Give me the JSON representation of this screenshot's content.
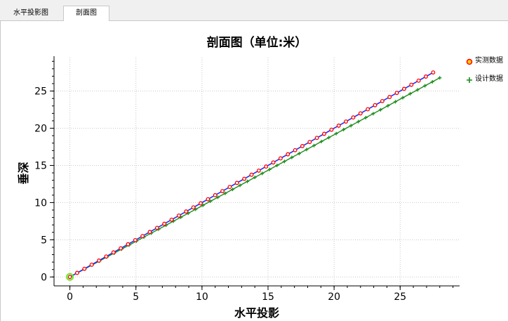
{
  "tabs": [
    {
      "label": "水平投影图",
      "active": false
    },
    {
      "label": "剖面图",
      "active": true
    }
  ],
  "chart_data": {
    "type": "line",
    "title": "剖面图（单位:米）",
    "xlabel": "水平投影",
    "ylabel": "垂深",
    "xlim": [
      -1.2,
      29.5
    ],
    "ylim": [
      -1.2,
      29.5
    ],
    "xticks": [
      0,
      5,
      10,
      15,
      20,
      25
    ],
    "yticks": [
      0,
      5,
      10,
      15,
      20,
      25
    ],
    "grid": true,
    "legend": "right",
    "start_marker": {
      "x": 0,
      "y": 0,
      "color": "#66ee22"
    },
    "series": [
      {
        "name": "实测数据",
        "marker": "circle",
        "color": "#ff0000",
        "line_color": "#2030ff",
        "points": [
          [
            0.0,
            0.0
          ],
          [
            0.55,
            0.55
          ],
          [
            1.1,
            1.1
          ],
          [
            1.65,
            1.65
          ],
          [
            2.2,
            2.2
          ],
          [
            2.75,
            2.75
          ],
          [
            3.3,
            3.3
          ],
          [
            3.85,
            3.85
          ],
          [
            4.4,
            4.4
          ],
          [
            4.95,
            4.95
          ],
          [
            5.5,
            5.5
          ],
          [
            6.05,
            6.05
          ],
          [
            6.6,
            6.6
          ],
          [
            7.15,
            7.15
          ],
          [
            7.7,
            7.7
          ],
          [
            8.25,
            8.25
          ],
          [
            8.8,
            8.8
          ],
          [
            9.35,
            9.35
          ],
          [
            9.9,
            9.9
          ],
          [
            10.45,
            10.45
          ],
          [
            11.0,
            11.0
          ],
          [
            11.55,
            11.55
          ],
          [
            12.1,
            12.1
          ],
          [
            12.65,
            12.65
          ],
          [
            13.2,
            13.2
          ],
          [
            13.75,
            13.75
          ],
          [
            14.3,
            14.3
          ],
          [
            14.85,
            14.85
          ],
          [
            15.4,
            15.4
          ],
          [
            15.95,
            15.95
          ],
          [
            16.5,
            16.5
          ],
          [
            17.05,
            17.05
          ],
          [
            17.6,
            17.6
          ],
          [
            18.15,
            18.15
          ],
          [
            18.7,
            18.7
          ],
          [
            19.25,
            19.25
          ],
          [
            19.8,
            19.8
          ],
          [
            20.35,
            20.35
          ],
          [
            20.9,
            20.9
          ],
          [
            21.45,
            21.45
          ],
          [
            22.0,
            22.0
          ],
          [
            22.55,
            22.55
          ],
          [
            23.1,
            23.1
          ],
          [
            23.65,
            23.65
          ],
          [
            24.2,
            24.2
          ],
          [
            24.75,
            24.75
          ],
          [
            25.3,
            25.3
          ],
          [
            25.85,
            25.85
          ],
          [
            26.4,
            26.4
          ],
          [
            26.95,
            26.95
          ],
          [
            27.5,
            27.5
          ]
        ]
      },
      {
        "name": "设计数据",
        "marker": "plus",
        "color": "#1a8c1a",
        "line_color": "#1a8c1a",
        "points": [
          [
            0.0,
            0.0
          ],
          [
            0.56,
            0.54
          ],
          [
            1.12,
            1.07
          ],
          [
            1.68,
            1.61
          ],
          [
            2.24,
            2.14
          ],
          [
            2.8,
            2.68
          ],
          [
            3.36,
            3.21
          ],
          [
            3.92,
            3.75
          ],
          [
            4.48,
            4.28
          ],
          [
            5.04,
            4.82
          ],
          [
            5.6,
            5.36
          ],
          [
            6.16,
            5.89
          ],
          [
            6.72,
            6.43
          ],
          [
            7.28,
            6.96
          ],
          [
            7.84,
            7.5
          ],
          [
            8.4,
            8.03
          ],
          [
            8.96,
            8.57
          ],
          [
            9.52,
            9.1
          ],
          [
            10.08,
            9.64
          ],
          [
            10.64,
            10.18
          ],
          [
            11.2,
            10.71
          ],
          [
            11.76,
            11.25
          ],
          [
            12.32,
            11.78
          ],
          [
            12.88,
            12.32
          ],
          [
            13.44,
            12.85
          ],
          [
            14.0,
            13.39
          ],
          [
            14.56,
            13.92
          ],
          [
            15.12,
            14.46
          ],
          [
            15.68,
            15.0
          ],
          [
            16.24,
            15.53
          ],
          [
            16.8,
            16.07
          ],
          [
            17.36,
            16.6
          ],
          [
            17.92,
            17.14
          ],
          [
            18.48,
            17.67
          ],
          [
            19.04,
            18.21
          ],
          [
            19.6,
            18.74
          ],
          [
            20.16,
            19.28
          ],
          [
            20.72,
            19.82
          ],
          [
            21.28,
            20.35
          ],
          [
            21.84,
            20.89
          ],
          [
            22.4,
            21.42
          ],
          [
            22.96,
            21.96
          ],
          [
            23.52,
            22.49
          ],
          [
            24.08,
            23.03
          ],
          [
            24.64,
            23.56
          ],
          [
            25.2,
            24.1
          ],
          [
            25.76,
            24.64
          ],
          [
            26.32,
            25.17
          ],
          [
            26.88,
            25.71
          ],
          [
            27.44,
            26.24
          ],
          [
            28.0,
            26.78
          ]
        ]
      }
    ]
  }
}
